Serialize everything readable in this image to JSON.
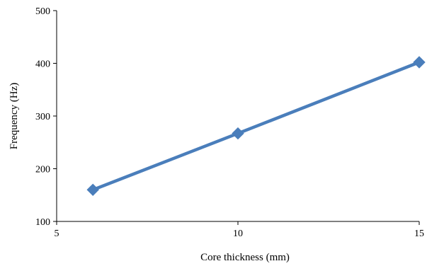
{
  "chart_data": {
    "type": "line",
    "title": "",
    "xlabel": "Core thickness (mm)",
    "ylabel": "Frequency (Hz)",
    "xlim": [
      5,
      15
    ],
    "ylim": [
      100,
      500
    ],
    "xticks": [
      "5",
      "10",
      "15"
    ],
    "yticks": [
      "100",
      "200",
      "300",
      "400",
      "500"
    ],
    "grid": false,
    "legend": "none",
    "marker": "diamond",
    "series": [
      {
        "x": [
          6,
          10,
          15
        ],
        "y": [
          160,
          267,
          402
        ],
        "color": "#4a7ebb"
      }
    ]
  }
}
